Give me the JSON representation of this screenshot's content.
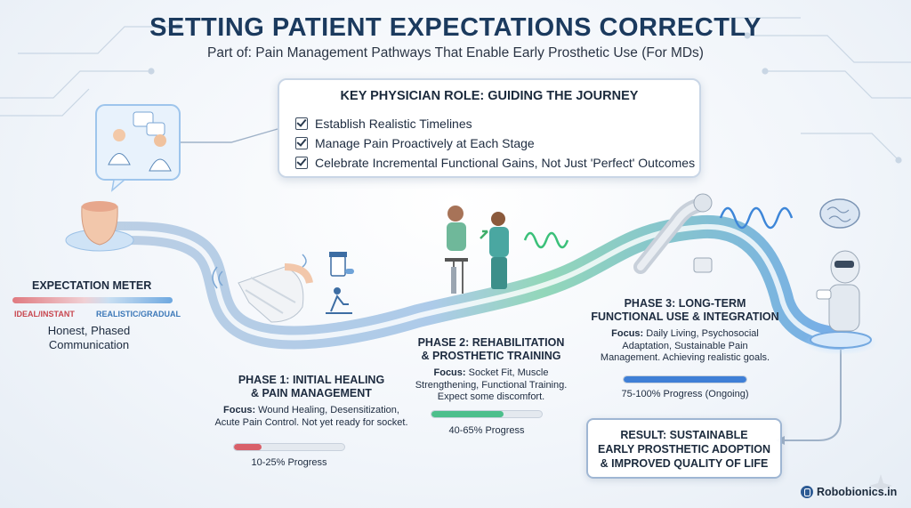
{
  "header": {
    "title": "SETTING PATIENT EXPECTATIONS CORRECTLY",
    "subtitle": "Part of: Pain Management Pathways That Enable Early Prosthetic Use (For MDs)"
  },
  "physician_role": {
    "title": "KEY PHYSICIAN ROLE: GUIDING THE JOURNEY",
    "items": [
      "Establish Realistic Timelines",
      "Manage Pain Proactively at Each Stage",
      "Celebrate Incremental Functional Gains, Not Just 'Perfect' Outcomes"
    ]
  },
  "expectation_meter": {
    "title": "EXPECTATION METER",
    "left_label": "IDEAL/INSTANT",
    "right_label": "REALISTIC/GRADUAL",
    "description": "Honest, Phased Communication"
  },
  "phases": [
    {
      "title_line1": "PHASE 1: INITIAL HEALING",
      "title_line2": "& PAIN MANAGEMENT",
      "focus_label": "Focus:",
      "focus_line1": " Wound Healing, Desensitization,",
      "focus_line2": "Acute Pain Control. Not yet ready for socket.",
      "progress_label": "10-25% Progress",
      "progress_fraction": 0.25,
      "progress_color": "#d9606a"
    },
    {
      "title_line1": "PHASE 2: REHABILITATION",
      "title_line2": "& PROSTHETIC TRAINING",
      "focus_label": "Focus:",
      "focus_line1": " Socket Fit, Muscle",
      "focus_line2": "Strengthening, Functional Training.",
      "focus_line3": "Expect some discomfort.",
      "progress_label": "40-65% Progress",
      "progress_fraction": 0.65,
      "progress_color": "#4cbf8c"
    },
    {
      "title_line1": "PHASE 3: LONG-TERM",
      "title_line2": "FUNCTIONAL USE & INTEGRATION",
      "focus_label": "Focus:",
      "focus_line1": " Daily Living, Psychosocial",
      "focus_line2": "Adaptation, Sustainable Pain",
      "focus_line3": "Management. Achieving realistic goals.",
      "progress_label": "75-100% Progress (Ongoing)",
      "progress_fraction": 1.0,
      "progress_color": "#3f7fd6"
    }
  ],
  "result": {
    "line1": "RESULT: SUSTAINABLE",
    "line2": "EARLY PROSTHETIC ADOPTION",
    "line3": "& IMPROVED QUALITY OF LIFE"
  },
  "brand": {
    "name": "Robobionics.in"
  },
  "icons": [
    "chat-bubbles-icon",
    "doctors-icon",
    "residual-limb-icon",
    "bandaged-limb-icon",
    "medicine-bottle-icon",
    "therapy-icon",
    "therapist-patient-icon",
    "prosthetic-arm-icon",
    "brain-icon",
    "robot-icon",
    "sparkle-icon"
  ],
  "colors": {
    "accent": "#1b3a5e",
    "path": "#8fb3d8",
    "phase1": "#d9606a",
    "phase2": "#4cbf8c",
    "phase3": "#3f7fd6"
  }
}
